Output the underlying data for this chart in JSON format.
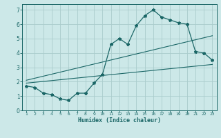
{
  "xlabel": "Humidex (Indice chaleur)",
  "bg_color": "#cce8e8",
  "grid_color": "#aacccc",
  "line_color": "#1a6666",
  "xlim": [
    0.5,
    23.5
  ],
  "ylim": [
    0,
    7.4
  ],
  "xticks": [
    1,
    2,
    3,
    4,
    5,
    6,
    7,
    8,
    9,
    10,
    11,
    12,
    13,
    14,
    15,
    16,
    17,
    18,
    19,
    20,
    21,
    22,
    23
  ],
  "yticks": [
    0,
    1,
    2,
    3,
    4,
    5,
    6,
    7
  ],
  "main_x": [
    1,
    2,
    3,
    4,
    5,
    6,
    7,
    8,
    9,
    10,
    11,
    12,
    13,
    14,
    15,
    16,
    17,
    18,
    19,
    20,
    21,
    22,
    23
  ],
  "main_y": [
    1.7,
    1.6,
    1.2,
    1.1,
    0.8,
    0.7,
    1.2,
    1.2,
    1.9,
    2.5,
    4.6,
    5.0,
    4.6,
    5.9,
    6.6,
    7.0,
    6.5,
    6.3,
    6.1,
    6.0,
    4.1,
    4.0,
    3.5
  ],
  "line2_x": [
    1,
    23
  ],
  "line2_y": [
    1.9,
    3.2
  ],
  "line3_x": [
    1,
    23
  ],
  "line3_y": [
    2.1,
    5.2
  ]
}
